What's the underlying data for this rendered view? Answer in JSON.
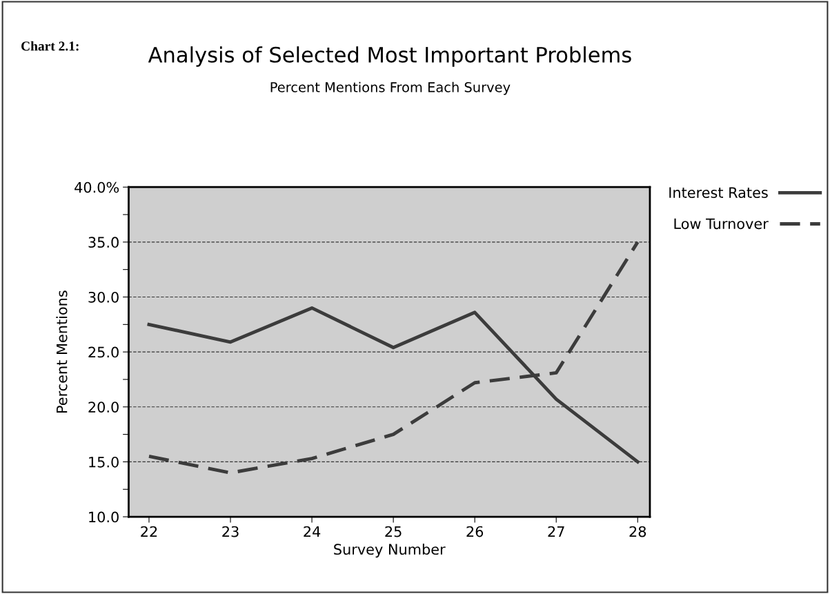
{
  "chart_data": {
    "type": "line",
    "title": "Analysis of Selected Most Important Problems",
    "subtitle": "Percent Mentions From Each Survey",
    "xlabel": "Survey Number",
    "ylabel": "Percent Mentions",
    "annotations": [
      "Chart 2.1:"
    ],
    "x": [
      22,
      23,
      24,
      25,
      26,
      27,
      28
    ],
    "series": [
      {
        "name": "Interest Rates",
        "color": "#3c3c3c",
        "line_style": "solid",
        "values": [
          27.5,
          25.9,
          29.0,
          25.4,
          28.6,
          20.7,
          15.0
        ]
      },
      {
        "name": "Low Turnover",
        "color": "#3c3c3c",
        "line_style": "dashed",
        "values": [
          15.5,
          14.0,
          15.3,
          17.5,
          22.2,
          23.1,
          35.0
        ]
      }
    ],
    "xlim": [
      21.75,
      28.15
    ],
    "xticks": [
      22,
      23,
      24,
      25,
      26,
      27,
      28
    ],
    "ylim": [
      10,
      40
    ],
    "yticks": [
      {
        "value": 10,
        "label": "10.0"
      },
      {
        "value": 12.5,
        "label": null
      },
      {
        "value": 15,
        "label": "15.0"
      },
      {
        "value": 17.5,
        "label": null
      },
      {
        "value": 20,
        "label": "20.0"
      },
      {
        "value": 22.5,
        "label": null
      },
      {
        "value": 25,
        "label": "25.0"
      },
      {
        "value": 27.5,
        "label": null
      },
      {
        "value": 30,
        "label": "30.0"
      },
      {
        "value": 32.5,
        "label": null
      },
      {
        "value": 35,
        "label": "35.0"
      },
      {
        "value": 37.5,
        "label": null
      },
      {
        "value": 40,
        "label": "40.0%"
      }
    ],
    "grid": "y",
    "legend": "top right",
    "marker": "none"
  }
}
